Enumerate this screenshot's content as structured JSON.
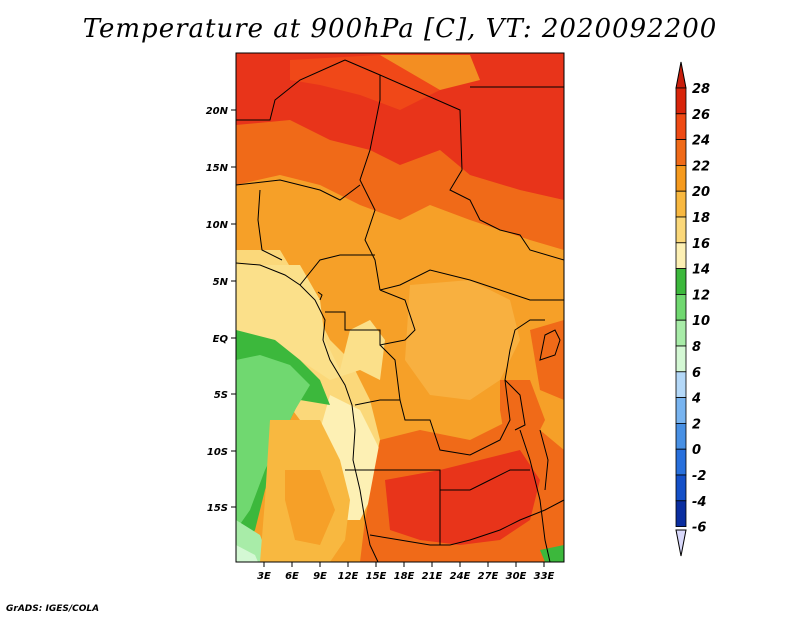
{
  "title": "Temperature at 900hPa [C], VT: 2020092200",
  "credit": "GrADS: IGES/COLA",
  "map": {
    "lat_ticks": [
      "20N",
      "15N",
      "10N",
      "5N",
      "EQ",
      "5S",
      "10S",
      "15S"
    ],
    "lon_ticks": [
      "3E",
      "6E",
      "9E",
      "12E",
      "15E",
      "18E",
      "21E",
      "24E",
      "27E",
      "30E",
      "33E"
    ],
    "extent": {
      "lon_min": 0,
      "lon_max": 35,
      "lat_min": -19.5,
      "lat_max": 24.5
    }
  },
  "colorbar": {
    "levels": [
      "28",
      "26",
      "24",
      "22",
      "20",
      "18",
      "16",
      "14",
      "12",
      "10",
      "8",
      "6",
      "4",
      "2",
      "0",
      "-2",
      "-4",
      "-6"
    ],
    "colors": [
      "#d8240a",
      "#ef4a14",
      "#f06a18",
      "#f59a1e",
      "#f8b840",
      "#fbd87a",
      "#fdf0b4",
      "#3cb83c",
      "#70d870",
      "#a8eca8",
      "#d4f8d4",
      "#b4d8f8",
      "#78b4f0",
      "#4890e4",
      "#2870dc",
      "#1450c8",
      "#0a2ea0",
      "#08106c"
    ],
    "top_arrow_color": "#c81e0c",
    "bottom_arrow_color": "#d8d8fa"
  }
}
